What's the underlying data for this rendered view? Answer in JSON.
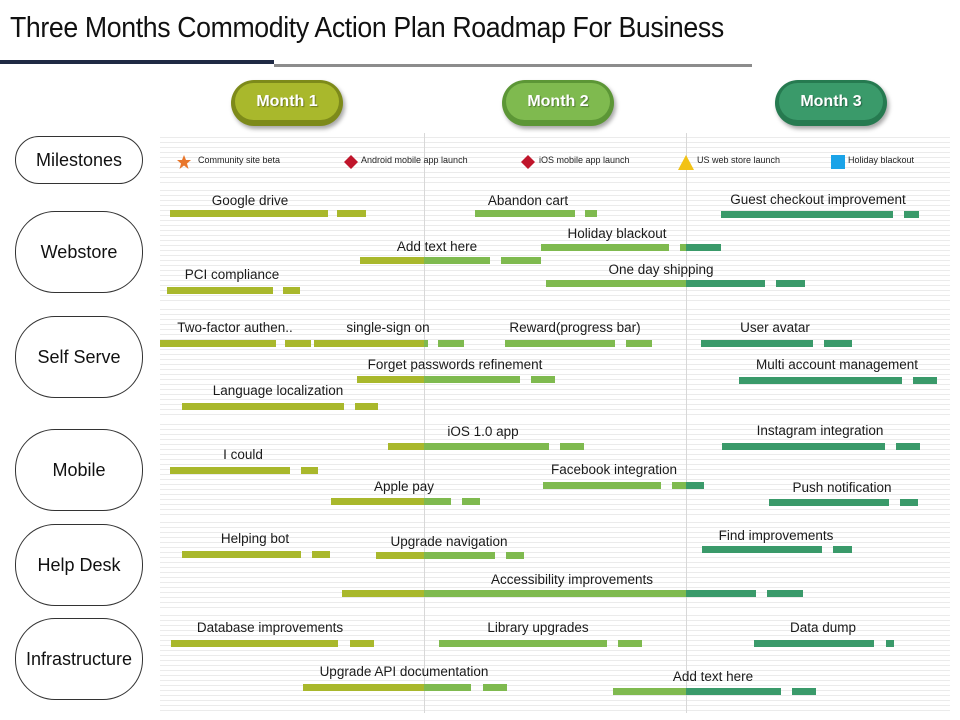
{
  "title": "Three Months Commodity Action Plan Roadmap For Business",
  "colors": {
    "month1": "#a9b82c",
    "month2": "#7fba4f",
    "month3": "#3a9a6a",
    "navy": "#1f2a44"
  },
  "months": [
    {
      "label": "Month 1"
    },
    {
      "label": "Month 2"
    },
    {
      "label": "Month 3"
    }
  ],
  "rows": [
    {
      "label": "Milestones"
    },
    {
      "label": "Webstore"
    },
    {
      "label": "Self Serve"
    },
    {
      "label": "Mobile"
    },
    {
      "label": "Help Desk"
    },
    {
      "label": "Infrastructure"
    }
  ],
  "milestones": [
    {
      "icon": "star-icon",
      "label": "Community site beta"
    },
    {
      "icon": "diamond-icon",
      "label": "Android mobile app launch"
    },
    {
      "icon": "diamond-icon",
      "label": "iOS mobile app launch"
    },
    {
      "icon": "triangle-icon",
      "label": "US web store launch"
    },
    {
      "icon": "square-icon",
      "label": "Holiday blackout"
    }
  ],
  "tasks": [
    {
      "label": "Google drive"
    },
    {
      "label": "Abandon cart"
    },
    {
      "label": "Guest checkout improvement"
    },
    {
      "label": "Add text here"
    },
    {
      "label": "Holiday blackout"
    },
    {
      "label": "PCI compliance"
    },
    {
      "label": "One day shipping"
    },
    {
      "label": "Two-factor authen.."
    },
    {
      "label": "single-sign on"
    },
    {
      "label": "Reward(progress bar)"
    },
    {
      "label": "User avatar"
    },
    {
      "label": "Forget passwords refinement"
    },
    {
      "label": "Multi account management"
    },
    {
      "label": "Language localization"
    },
    {
      "label": "iOS 1.0 app"
    },
    {
      "label": "Instagram integration"
    },
    {
      "label": "I could"
    },
    {
      "label": "Facebook integration"
    },
    {
      "label": "Apple pay"
    },
    {
      "label": "Push notification"
    },
    {
      "label": "Helping bot"
    },
    {
      "label": "Upgrade navigation"
    },
    {
      "label": "Find improvements"
    },
    {
      "label": "Accessibility improvements"
    },
    {
      "label": "Database improvements"
    },
    {
      "label": "Library upgrades"
    },
    {
      "label": "Data dump"
    },
    {
      "label": "Upgrade API documentation"
    },
    {
      "label": "Add text here"
    }
  ]
}
